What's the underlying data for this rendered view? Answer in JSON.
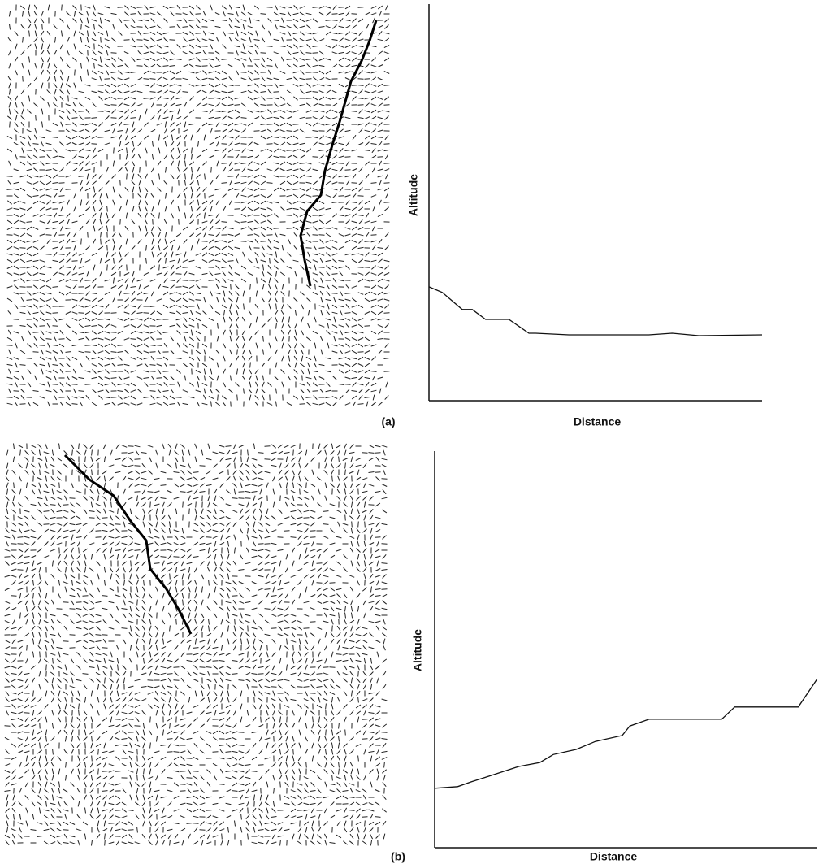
{
  "chart_data": [
    {
      "type": "line",
      "panel_label": "(a)",
      "x_label": "Distance",
      "y_label": "Altitude",
      "x": [
        0,
        4,
        10,
        13,
        17,
        24,
        30,
        32,
        42,
        57,
        66,
        73,
        81,
        100
      ],
      "values": [
        28.7,
        27.3,
        23,
        23,
        20.5,
        20.5,
        17,
        17,
        16.6,
        16.6,
        16.6,
        17,
        16.4,
        16.6
      ],
      "xlim": [
        0,
        100
      ],
      "ylim": [
        0,
        100
      ],
      "color": "#111111"
    },
    {
      "type": "line",
      "panel_label": "(b)",
      "x_label": "Distance",
      "y_label": "Altitude",
      "x": [
        0,
        6,
        9.5,
        14,
        22,
        27.5,
        31,
        37,
        42,
        49,
        51,
        56,
        75,
        78.4,
        95,
        100
      ],
      "values": [
        15,
        15.4,
        16.6,
        18,
        20.5,
        21.5,
        23.5,
        24.8,
        26.8,
        28.3,
        30.7,
        32.4,
        32.4,
        35.5,
        35.5,
        42.6
      ],
      "xlim": [
        0,
        100
      ],
      "ylim": [
        0,
        100
      ],
      "color": "#111111"
    }
  ]
}
